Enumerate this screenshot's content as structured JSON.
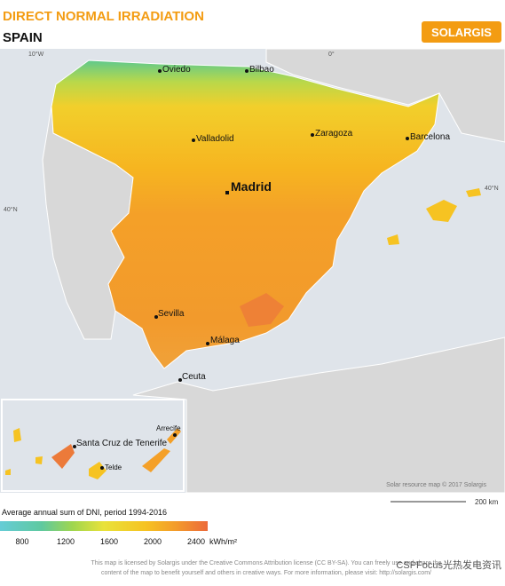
{
  "header": {
    "title": "DIRECT NORMAL IRRADIATION",
    "subtitle": "SPAIN",
    "logo": "SOLARGIS"
  },
  "map": {
    "graticule": [
      "10°W",
      "0°",
      "40°N",
      "40°N"
    ],
    "cities": [
      "Oviedo",
      "Bilbao",
      "Valladolid",
      "Zaragoza",
      "Barcelona",
      "Madrid",
      "Sevilla",
      "Málaga",
      "Ceuta"
    ],
    "inset_cities": [
      "Arrecife",
      "Santa Cruz de Tenerife",
      "Telde"
    ],
    "credit": "Solar resource map © 2017 Solargis",
    "scale": "200 km"
  },
  "legend": {
    "title": "Average annual sum of DNI, period 1994-2016",
    "ticks": [
      800,
      1200,
      1600,
      2000,
      2400
    ],
    "unit": "kWh/m²"
  },
  "footer": {
    "lines": [
      "This map is licensed by Solargis under the Creative Commons Attribution license (CC BY-SA). You can freely use and share the",
      "content of the map to benefit yourself and others in creative ways. For more information, please visit: http://solargis.com/"
    ]
  },
  "watermark": "CSPFocus光热发电资讯"
}
